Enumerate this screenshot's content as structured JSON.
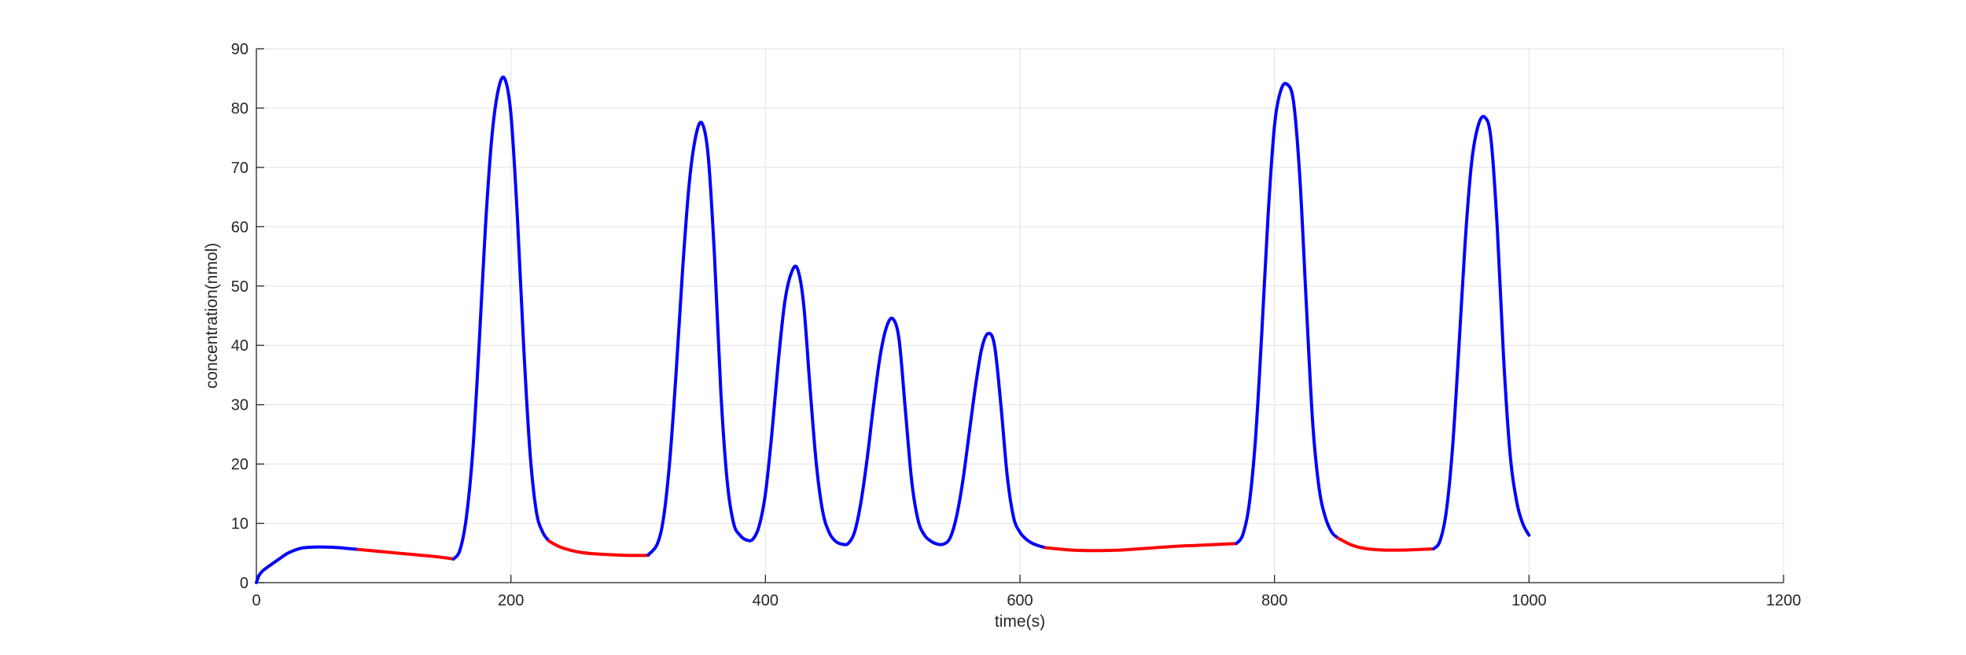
{
  "chart_data": {
    "type": "line",
    "title": "",
    "xlabel": "time(s)",
    "ylabel": "concentration(nmol)",
    "xlim": [
      0,
      1200
    ],
    "ylim": [
      0,
      90
    ],
    "xticks": [
      0,
      200,
      400,
      600,
      800,
      1000,
      1200
    ],
    "yticks": [
      0,
      10,
      20,
      30,
      40,
      50,
      60,
      70,
      80,
      90
    ],
    "grid": true,
    "colors": {
      "rising_phase": "#0000ff",
      "resting_phase": "#ff0000",
      "grid": "#e6e6e6",
      "axis": "#262626"
    },
    "series": [
      {
        "color": "#0000ff",
        "x": [
          0,
          2,
          5,
          10,
          18,
          25,
          35,
          45,
          55,
          65,
          75,
          80
        ],
        "y": [
          0,
          1.2,
          2.0,
          2.8,
          4.0,
          5.0,
          5.8,
          6.0,
          6.0,
          5.9,
          5.7,
          5.6
        ]
      },
      {
        "color": "#ff0000",
        "x": [
          80,
          100,
          120,
          140,
          155
        ],
        "y": [
          5.6,
          5.2,
          4.8,
          4.4,
          4.0
        ]
      },
      {
        "color": "#0000ff",
        "x": [
          155,
          160,
          165,
          170,
          175,
          180,
          185,
          190,
          195,
          200,
          205,
          210,
          215,
          220,
          225,
          230
        ],
        "y": [
          4.0,
          5.5,
          11,
          22,
          40,
          60,
          75,
          83,
          85,
          79,
          62,
          40,
          22,
          12,
          8.5,
          7.0
        ]
      },
      {
        "color": "#ff0000",
        "x": [
          230,
          240,
          255,
          270,
          290,
          308
        ],
        "y": [
          7.0,
          5.9,
          5.1,
          4.8,
          4.6,
          4.6
        ]
      },
      {
        "color": "#0000ff",
        "x": [
          308,
          315,
          320,
          325,
          330,
          335,
          340,
          345,
          350,
          355,
          360,
          365,
          370,
          375,
          380,
          385,
          390,
          395,
          400,
          405,
          410,
          415,
          420,
          425,
          430,
          435,
          440,
          445,
          450,
          455,
          460,
          465,
          470,
          475,
          480,
          485,
          490,
          495,
          500,
          505,
          510,
          515,
          520,
          525,
          530,
          535,
          540,
          545,
          550,
          555,
          560,
          565,
          570,
          575,
          580,
          585,
          590,
          595,
          600,
          605,
          610,
          615,
          620
        ],
        "y": [
          4.7,
          6.5,
          11,
          21,
          36,
          53,
          67,
          75,
          77.5,
          72,
          55,
          32,
          17,
          10,
          8,
          7.2,
          7.3,
          9.5,
          15,
          25,
          37,
          47,
          52,
          53,
          47,
          33,
          20,
          12,
          8.5,
          7,
          6.5,
          6.6,
          8.5,
          13.5,
          21,
          30,
          38,
          43,
          44.5,
          41,
          29,
          17,
          10.5,
          8,
          7,
          6.5,
          6.5,
          7.5,
          11,
          17,
          25,
          33,
          39.5,
          42,
          40,
          30,
          18,
          11,
          8.5,
          7.3,
          6.6,
          6.2,
          5.9
        ]
      },
      {
        "color": "#ff0000",
        "x": [
          620,
          640,
          660,
          680,
          700,
          720,
          740,
          760,
          770
        ],
        "y": [
          5.9,
          5.5,
          5.4,
          5.5,
          5.8,
          6.1,
          6.3,
          6.5,
          6.6
        ]
      },
      {
        "color": "#0000ff",
        "x": [
          770,
          775,
          780,
          785,
          790,
          795,
          800,
          805,
          810,
          815,
          820,
          825,
          830,
          835,
          840,
          845,
          850
        ],
        "y": [
          6.6,
          8,
          13,
          24,
          42,
          62,
          77,
          83,
          84,
          81,
          68,
          47,
          27,
          16,
          11,
          8.5,
          7.5
        ]
      },
      {
        "color": "#ff0000",
        "x": [
          850,
          860,
          870,
          885,
          900,
          915,
          925
        ],
        "y": [
          7.5,
          6.4,
          5.8,
          5.5,
          5.5,
          5.6,
          5.7
        ]
      },
      {
        "color": "#0000ff",
        "x": [
          925,
          930,
          935,
          940,
          945,
          950,
          955,
          960,
          965,
          970,
          975,
          980,
          985,
          990,
          995,
          1000
        ],
        "y": [
          5.7,
          7,
          12,
          23,
          40,
          58,
          71,
          77,
          78.5,
          75,
          60,
          38,
          22,
          14,
          10,
          8
        ]
      }
    ]
  }
}
